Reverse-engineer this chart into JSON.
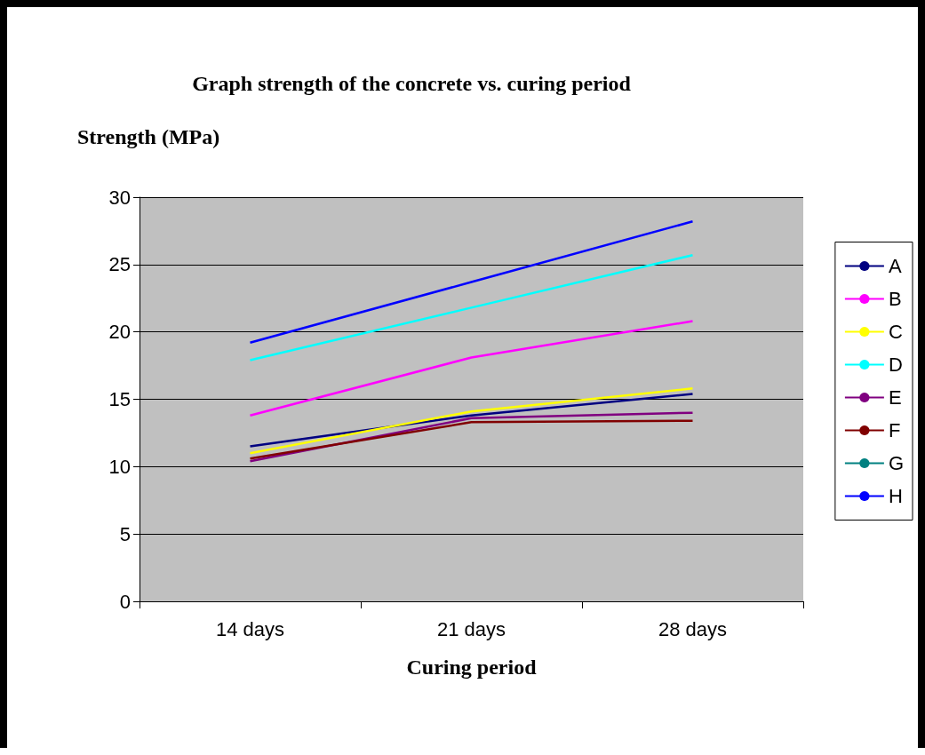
{
  "chart_data": {
    "type": "line",
    "title": "Graph strength of the concrete vs. curing period",
    "ylabel": "Strength (MPa)",
    "xlabel": "Curing period",
    "categories": [
      "14 days",
      "21 days",
      "28 days"
    ],
    "series": [
      {
        "name": "A",
        "color": "#000080",
        "values": [
          11.5,
          13.8,
          15.4
        ]
      },
      {
        "name": "B",
        "color": "#ff00ff",
        "values": [
          13.8,
          18.1,
          20.8
        ]
      },
      {
        "name": "C",
        "color": "#ffff00",
        "values": [
          11.0,
          14.1,
          15.8
        ]
      },
      {
        "name": "D",
        "color": "#00ffff",
        "values": [
          17.9,
          21.8,
          25.7
        ]
      },
      {
        "name": "E",
        "color": "#800080",
        "values": [
          10.4,
          13.6,
          14.0
        ]
      },
      {
        "name": "F",
        "color": "#800000",
        "values": [
          10.6,
          13.3,
          13.4
        ]
      },
      {
        "name": "G",
        "color": "#008080",
        "values": [
          null,
          null,
          null
        ]
      },
      {
        "name": "H",
        "color": "#0000ff",
        "values": [
          19.2,
          23.7,
          28.2
        ]
      }
    ],
    "ylim": [
      0,
      30
    ],
    "yticks": [
      0,
      5,
      10,
      15,
      20,
      25,
      30
    ],
    "grid": "y",
    "legend": "right"
  }
}
